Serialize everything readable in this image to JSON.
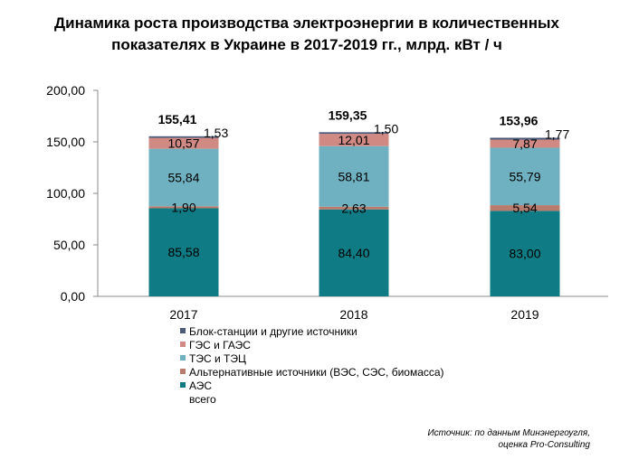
{
  "chart_data": {
    "type": "bar",
    "stacked": true,
    "title_lines": [
      "Динамика роста производства электроэнергии в количественных",
      "показателях в Украине в 2017-2019 гг., млрд. кВт / ч"
    ],
    "categories": [
      "2017",
      "2018",
      "2019"
    ],
    "ylim": [
      0,
      200
    ],
    "y_ticks": [
      "0,00",
      "50,00",
      "100,00",
      "150,00",
      "200,00"
    ],
    "y_tick_values": [
      0,
      50,
      100,
      150,
      200
    ],
    "grid": false,
    "legend_position": "bottom-left",
    "series": [
      {
        "name": "АЭС",
        "color": "#0f7b84",
        "values": [
          85.58,
          84.4,
          83.0
        ],
        "labels": [
          "85,58",
          "84,40",
          "83,00"
        ]
      },
      {
        "name": "Альтернативные  источники (ВЭС, СЭС, биомасса)",
        "color": "#b97b6c",
        "values": [
          1.9,
          2.63,
          5.54
        ],
        "labels": [
          "1,90",
          "2,63",
          "5,54"
        ]
      },
      {
        "name": "ТЭС  и ТЭЦ",
        "color": "#6fb1c0",
        "values": [
          55.84,
          58.81,
          55.79
        ],
        "labels": [
          "55,84",
          "58,81",
          "55,79"
        ]
      },
      {
        "name": "ГЭС  и ГАЭС",
        "color": "#d08a83",
        "values": [
          10.57,
          12.01,
          7.87
        ],
        "labels": [
          "10,57",
          "12,01",
          "7,87"
        ]
      },
      {
        "name": "Блок-станции  и другие источники",
        "color": "#4b5a78",
        "values": [
          1.53,
          1.5,
          1.77
        ],
        "labels": [
          "1,53",
          "1,50",
          "1,77"
        ]
      }
    ],
    "totals": {
      "name": "всего",
      "values": [
        155.41,
        159.35,
        153.96
      ],
      "labels": [
        "155,41",
        "159,35",
        "153,96"
      ]
    },
    "legend_order": [
      4,
      3,
      2,
      1,
      0
    ],
    "source_lines": [
      "Источник: по данным Минэнергоугля,",
      "оценка Pro-Consulting"
    ]
  }
}
